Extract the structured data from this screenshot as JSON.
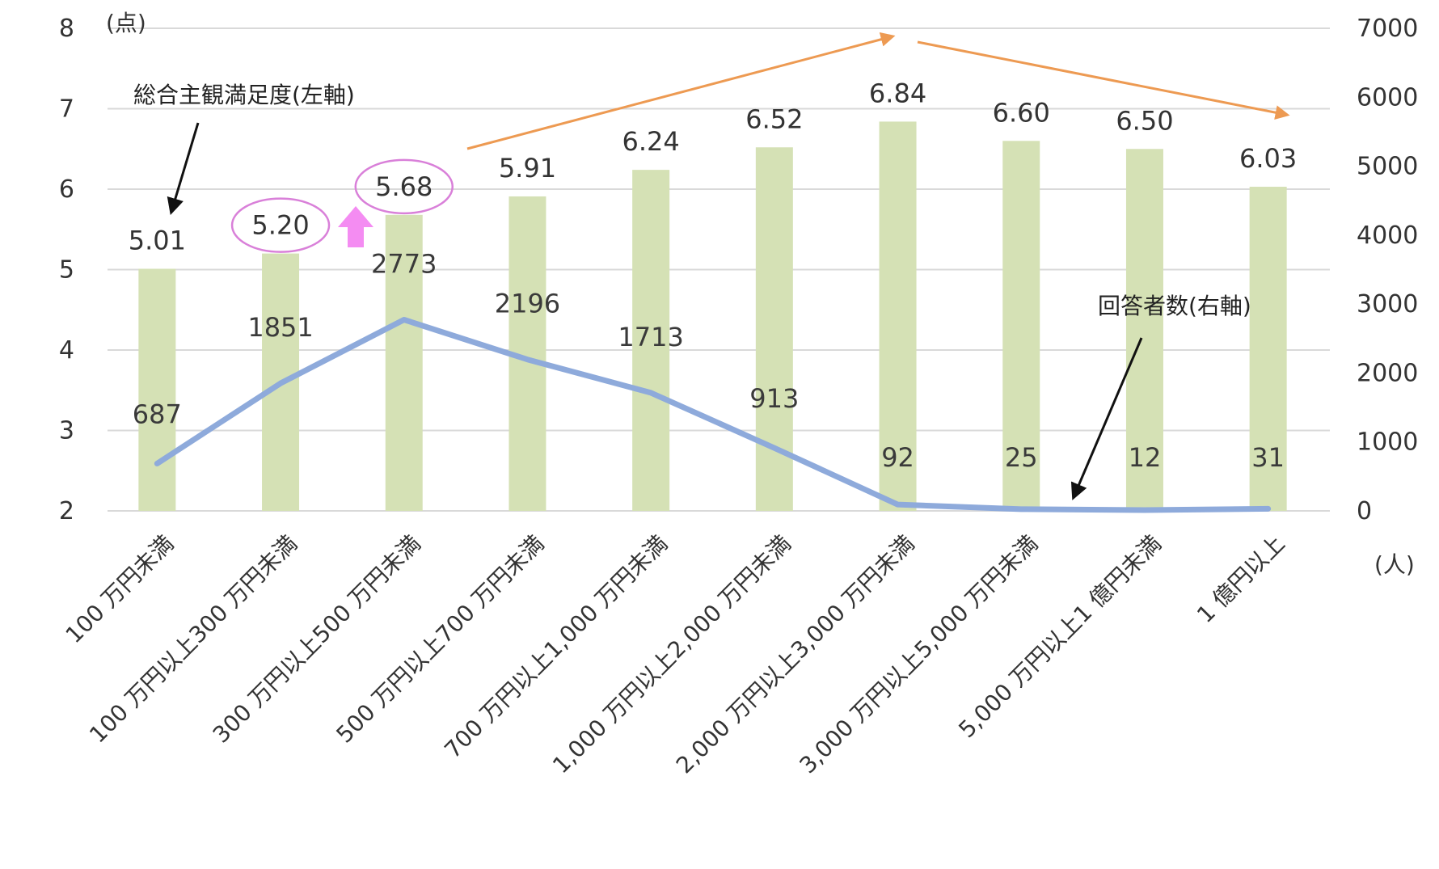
{
  "chart_data": {
    "type": "bar",
    "categories": [
      "100 万円未満",
      "100 万円以上300 万円未満",
      "300 万円以上500 万円未満",
      "500 万円以上700 万円未満",
      "700 万円以上1,000 万円未満",
      "1,000 万円以上2,000 万円未満",
      "2,000 万円以上3,000 万円未満",
      "3,000 万円以上5,000 万円未満",
      "5,000 万円以上1 億円未満",
      "1 億円以上"
    ],
    "series": [
      {
        "name": "総合主観満足度(左軸)",
        "type": "bar",
        "axis": "left",
        "values": [
          5.01,
          5.2,
          5.68,
          5.91,
          6.24,
          6.52,
          6.84,
          6.6,
          6.5,
          6.03
        ],
        "labels": [
          "5.01",
          "5.20",
          "5.68",
          "5.91",
          "6.24",
          "6.52",
          "6.84",
          "6.60",
          "6.50",
          "6.03"
        ]
      },
      {
        "name": "回答者数(右軸)",
        "type": "line",
        "axis": "right",
        "values": [
          687,
          1851,
          2773,
          2196,
          1713,
          913,
          92,
          25,
          12,
          31
        ],
        "labels": [
          "687",
          "1851",
          "2773",
          "2196",
          "1713",
          "913",
          "92",
          "25",
          "12",
          "31"
        ]
      }
    ],
    "y_left": {
      "unit": "(点)",
      "lim": [
        2,
        8
      ],
      "ticks": [
        "2",
        "3",
        "4",
        "5",
        "6",
        "7",
        "8"
      ]
    },
    "y_right": {
      "unit": "(人)",
      "lim": [
        0,
        7000
      ],
      "ticks": [
        "0",
        "1000",
        "2000",
        "3000",
        "4000",
        "5000",
        "6000",
        "7000"
      ]
    },
    "grid": true,
    "highlighted_labels": [
      "5.20",
      "5.68"
    ],
    "colors": {
      "bar": "#d5e1b5",
      "line": "#8eaadb",
      "grid": "#d9d9d9",
      "trend_arrow": "#ed9a52",
      "highlight_circle": "#d980d9",
      "up_arrow": "#f48cf2",
      "pointer_arrow": "#111111"
    }
  }
}
